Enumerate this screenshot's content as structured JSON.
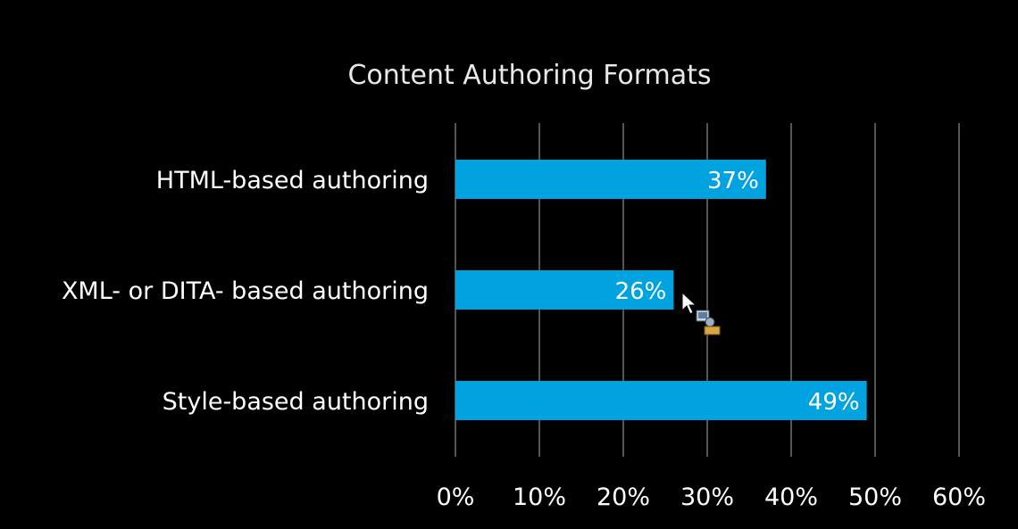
{
  "chart_data": {
    "type": "bar",
    "orientation": "horizontal",
    "title": "Content Authoring Formats",
    "categories": [
      "HTML-based authoring",
      "XML- or DITA- based authoring",
      "Style-based authoring"
    ],
    "values": [
      37,
      26,
      49
    ],
    "data_labels": [
      "37%",
      "26%",
      "49%"
    ],
    "x_ticks": [
      0,
      10,
      20,
      30,
      40,
      50,
      60
    ],
    "x_tick_labels": [
      "0%",
      "10%",
      "20%",
      "30%",
      "40%",
      "50%",
      "60%"
    ],
    "xlim": [
      0,
      60
    ],
    "xlabel": "",
    "ylabel": "",
    "grid": "vertical",
    "legend": "none",
    "colors": {
      "background": "#000000",
      "bar": "#00a3e0",
      "grid": "#8c8c8c",
      "text": "#ffffff"
    }
  },
  "cursor": {
    "icon": "busy-arrow-cursor-icon"
  }
}
